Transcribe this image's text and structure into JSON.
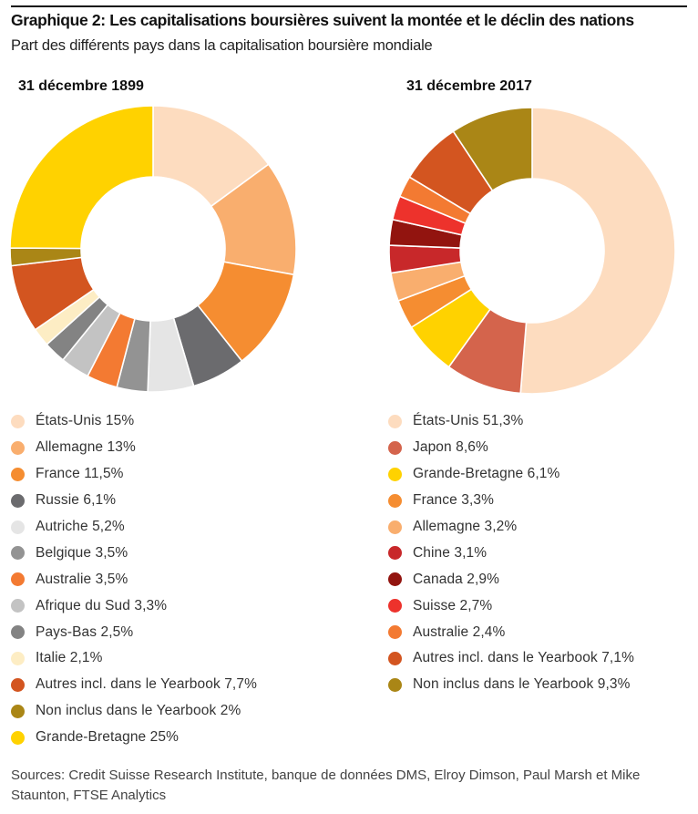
{
  "header": {
    "title": "Graphique 2: Les capitalisations boursières suivent la montée et le déclin des nations",
    "subtitle": "Part des différents pays dans la capitalisation boursière mondiale"
  },
  "chart_data": [
    {
      "type": "pie",
      "title": "31 décembre 1899",
      "slices": [
        {
          "label": "États-Unis 15%",
          "value": 15,
          "color": "#FDDCBF"
        },
        {
          "label": "Allemagne 13%",
          "value": 13,
          "color": "#F9AE6E"
        },
        {
          "label": "France 11,5%",
          "value": 11.5,
          "color": "#F58D31"
        },
        {
          "label": "Russie 6,1%",
          "value": 6.1,
          "color": "#6B6B6E"
        },
        {
          "label": "Autriche 5,2%",
          "value": 5.2,
          "color": "#E5E5E5"
        },
        {
          "label": "Belgique 3,5%",
          "value": 3.5,
          "color": "#939393"
        },
        {
          "label": "Australie 3,5%",
          "value": 3.5,
          "color": "#F37A32"
        },
        {
          "label": "Afrique du Sud 3,3%",
          "value": 3.3,
          "color": "#C3C3C3"
        },
        {
          "label": "Pays-Bas 2,5%",
          "value": 2.5,
          "color": "#838383"
        },
        {
          "label": "Italie 2,1%",
          "value": 2.1,
          "color": "#FDEDC4"
        },
        {
          "label": "Autres incl. dans le Yearbook 7,7%",
          "value": 7.7,
          "color": "#D35520"
        },
        {
          "label": "Non inclus dans le Yearbook 2%",
          "value": 2,
          "color": "#AA8616"
        },
        {
          "label": "Grande-Bretagne 25%",
          "value": 25,
          "color": "#FFD200"
        }
      ]
    },
    {
      "type": "pie",
      "title": "31 décembre 2017",
      "slices": [
        {
          "label": "États-Unis 51,3%",
          "value": 51.3,
          "color": "#FDDCBF"
        },
        {
          "label": "Japon 8,6%",
          "value": 8.6,
          "color": "#D4644C"
        },
        {
          "label": "Grande-Bretagne 6,1%",
          "value": 6.1,
          "color": "#FFD200"
        },
        {
          "label": "France 3,3%",
          "value": 3.3,
          "color": "#F58D31"
        },
        {
          "label": "Allemagne 3,2%",
          "value": 3.2,
          "color": "#F9AE6E"
        },
        {
          "label": "Chine 3,1%",
          "value": 3.1,
          "color": "#C8282A"
        },
        {
          "label": "Canada 2,9%",
          "value": 2.9,
          "color": "#92140F"
        },
        {
          "label": "Suisse 2,7%",
          "value": 2.7,
          "color": "#ED322C"
        },
        {
          "label": "Australie 2,4%",
          "value": 2.4,
          "color": "#F37A32"
        },
        {
          "label": "Autres incl. dans le Yearbook 7,1%",
          "value": 7.1,
          "color": "#D35520"
        },
        {
          "label": "Non inclus dans le Yearbook 9,3%",
          "value": 9.3,
          "color": "#AA8616"
        }
      ]
    }
  ],
  "source": {
    "text": "Sources: Credit Suisse Research Institute, banque de données DMS, Elroy Dimson, Paul Marsh et Mike Staunton, FTSE Analytics"
  }
}
